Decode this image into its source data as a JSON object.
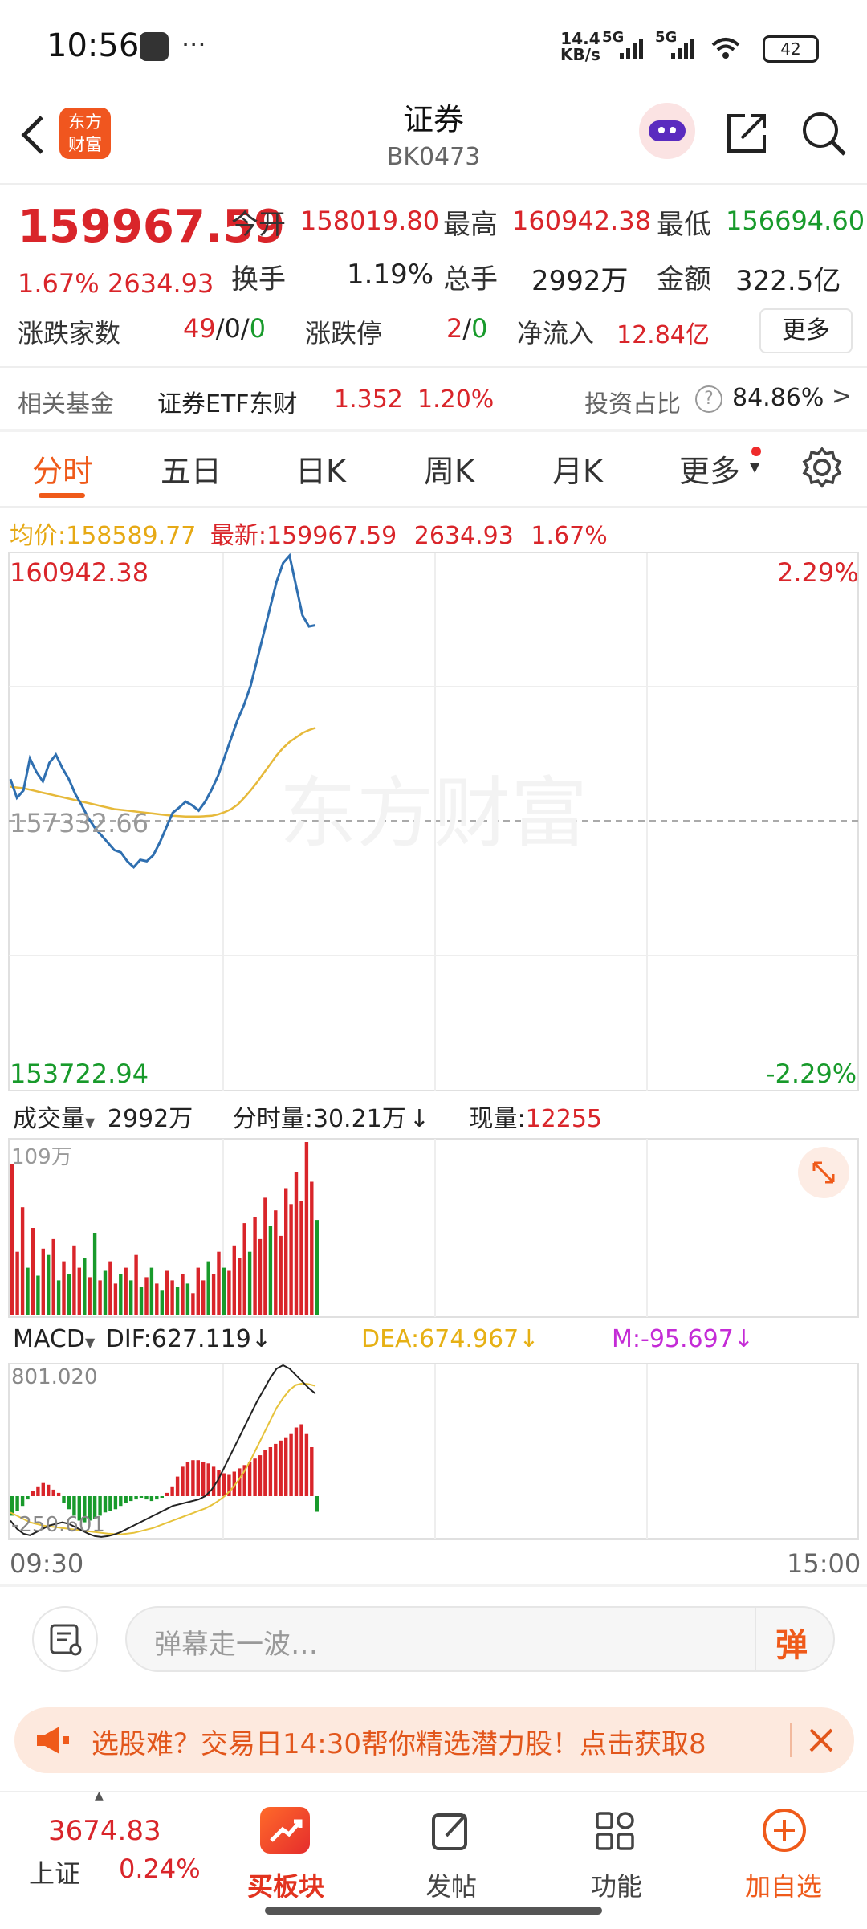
{
  "status_bar": {
    "time": "10:56",
    "net_speed_top": "14.4",
    "net_speed_bottom": "KB/s",
    "battery": "42",
    "net_5g_1": "5G",
    "net_5g_2": "5G"
  },
  "header": {
    "title": "证券",
    "code": "BK0473",
    "logo_line1": "东方",
    "logo_line2": "财富"
  },
  "quote": {
    "price": "159967.59",
    "change_pct": "1.67%",
    "change_amt": "2634.93",
    "open_label": "今开",
    "open": "158019.80",
    "high_label": "最高",
    "high": "160942.38",
    "low_label": "最低",
    "low": "156694.60",
    "turnover_label": "换手",
    "turnover": "1.19%",
    "volume_label": "总手",
    "volume": "2992万",
    "amount_label": "金额",
    "amount": "322.5亿",
    "updown_label": "涨跌家数",
    "up": "49",
    "slash1": "/",
    "flat": "0",
    "slash2": "/",
    "down": "0",
    "limit_label": "涨跌停",
    "limit_up": "2",
    "slash3": "/",
    "limit_down": "0",
    "inflow_label": "净流入",
    "inflow": "12.84亿",
    "more": "更多"
  },
  "fund": {
    "label": "相关基金",
    "name": "证券ETF东财",
    "price": "1.352",
    "pct": "1.20%",
    "ratio_label": "投资占比",
    "ratio": "84.86%",
    "chevron": ">"
  },
  "tabs": [
    "分时",
    "五日",
    "日K",
    "周K",
    "月K",
    "更多"
  ],
  "info_bar": {
    "avg_label": "均价:",
    "avg": "158589.77",
    "latest_label": "最新:",
    "latest": "159967.59",
    "amt": "2634.93",
    "pct": "1.67%"
  },
  "price_chart": {
    "top_left": "160942.38",
    "top_right": "2.29%",
    "mid_left": "157332.66",
    "bottom_left": "153722.94",
    "bottom_right": "-2.29%",
    "watermark": "东方财富"
  },
  "volume_bar": {
    "label": "成交量",
    "total": "2992万",
    "minute_label": "分时量:",
    "minute": "30.21万",
    "minute_arrow": "↓",
    "now_label": "现量:",
    "now": "12255",
    "max_label": "109万"
  },
  "macd_bar": {
    "label": "MACD",
    "dif": "DIF:627.119",
    "dif_arrow": "↓",
    "dea": "DEA:674.967",
    "dea_arrow": "↓",
    "m": "M:-95.697",
    "m_arrow": "↓",
    "top": "801.020",
    "bottom": "-250.601"
  },
  "time_axis": {
    "start": "09:30",
    "end": "15:00"
  },
  "comment": {
    "placeholder": "弹幕走一波…",
    "danmu": "弹"
  },
  "banner": {
    "text": "选股难？交易日14:30帮你精选潜力股！点击获取8"
  },
  "bottom_nav": {
    "index_value": "3674.83",
    "index_name": "上证",
    "index_pct": "0.24%",
    "items": [
      "买板块",
      "发帖",
      "功能",
      "加自选"
    ]
  },
  "colors": {
    "up": "#d9252a",
    "down": "#189a2b",
    "accent": "#ef5a1a",
    "price_line": "#2f6fb0",
    "avg_line": "#e6b93a"
  },
  "chart_data": [
    {
      "type": "line",
      "title": "",
      "ylim": [
        153722.94,
        160942.38
      ],
      "x_range": [
        "09:30",
        "15:00"
      ],
      "baseline": 157332.66,
      "series": [
        {
          "name": "最新",
          "values": [
            157900,
            157650,
            157750,
            158180,
            158000,
            157870,
            158120,
            158230,
            158050,
            157900,
            157700,
            157550,
            157380,
            157250,
            157150,
            157050,
            156950,
            156920,
            156800,
            156720,
            156820,
            156800,
            156880,
            157050,
            157250,
            157450,
            157520,
            157600,
            157550,
            157480,
            157600,
            157760,
            157950,
            158200,
            158450,
            158700,
            158900,
            159150,
            159500,
            159850,
            160200,
            160550,
            160800,
            160900,
            160500,
            160100,
            159950,
            159967.59
          ]
        },
        {
          "name": "均价",
          "values": [
            157800,
            157790,
            157780,
            157760,
            157740,
            157720,
            157700,
            157680,
            157660,
            157640,
            157620,
            157600,
            157580,
            157560,
            157540,
            157520,
            157500,
            157490,
            157480,
            157470,
            157460,
            157450,
            157440,
            157430,
            157420,
            157410,
            157405,
            157400,
            157400,
            157400,
            157405,
            157410,
            157430,
            157460,
            157500,
            157560,
            157650,
            157750,
            157860,
            157980,
            158100,
            158220,
            158320,
            158400,
            158460,
            158520,
            158560,
            158589.77
          ]
        }
      ]
    },
    {
      "type": "bar",
      "title": "",
      "ylabel": "成交量",
      "ylim": [
        0,
        109
      ],
      "values": [
        95,
        40,
        68,
        30,
        55,
        25,
        42,
        38,
        48,
        22,
        34,
        26,
        44,
        30,
        36,
        24,
        52,
        22,
        28,
        34,
        20,
        26,
        30,
        22,
        38,
        18,
        24,
        30,
        20,
        16,
        28,
        22,
        18,
        26,
        20,
        14,
        30,
        22,
        34,
        26,
        40,
        30,
        28,
        44,
        36,
        58,
        40,
        62,
        48,
        74,
        56,
        66,
        50,
        80,
        70,
        90,
        72,
        109,
        84,
        60
      ],
      "up_flags": [
        1,
        1,
        1,
        0,
        1,
        0,
        1,
        0,
        1,
        0,
        1,
        0,
        1,
        1,
        0,
        1,
        0,
        1,
        0,
        1,
        1,
        0,
        1,
        0,
        1,
        0,
        1,
        0,
        1,
        0,
        1,
        1,
        0,
        1,
        0,
        1,
        1,
        1,
        0,
        1,
        1,
        0,
        1,
        1,
        1,
        1,
        0,
        1,
        1,
        1,
        0,
        1,
        1,
        1,
        1,
        1,
        1,
        1,
        1,
        0
      ]
    },
    {
      "type": "bar",
      "title": "",
      "ylabel": "MACD",
      "ylim": [
        -250.601,
        801.02
      ],
      "values": [
        -120,
        -90,
        -60,
        -20,
        30,
        60,
        80,
        70,
        40,
        20,
        -40,
        -80,
        -120,
        -150,
        -160,
        -150,
        -140,
        -120,
        -100,
        -90,
        -80,
        -60,
        -40,
        -30,
        -20,
        -10,
        -20,
        -30,
        -20,
        -10,
        20,
        60,
        120,
        180,
        210,
        220,
        220,
        210,
        200,
        180,
        160,
        140,
        130,
        150,
        170,
        190,
        210,
        230,
        250,
        280,
        300,
        320,
        340,
        360,
        380,
        420,
        440,
        380,
        300,
        -95.697
      ],
      "dif": [
        -150,
        -200,
        -230,
        -240,
        -220,
        -200,
        -180,
        -170,
        -160,
        -170,
        -190,
        -210,
        -230,
        -245,
        -250,
        -245,
        -235,
        -220,
        -200,
        -180,
        -160,
        -140,
        -120,
        -100,
        -80,
        -60,
        -50,
        -40,
        -30,
        -20,
        0,
        40,
        100,
        180,
        260,
        340,
        420,
        500,
        580,
        650,
        720,
        780,
        801.02,
        780,
        740,
        700,
        660,
        627.119
      ],
      "dea": [
        -100,
        -120,
        -140,
        -160,
        -170,
        -180,
        -185,
        -190,
        -195,
        -200,
        -205,
        -210,
        -215,
        -220,
        -225,
        -230,
        -232,
        -234,
        -230,
        -225,
        -215,
        -205,
        -195,
        -180,
        -165,
        -150,
        -135,
        -120,
        -105,
        -90,
        -75,
        -55,
        -30,
        0,
        40,
        90,
        150,
        220,
        300,
        380,
        460,
        540,
        600,
        650,
        680,
        690,
        685,
        674.967
      ]
    }
  ]
}
